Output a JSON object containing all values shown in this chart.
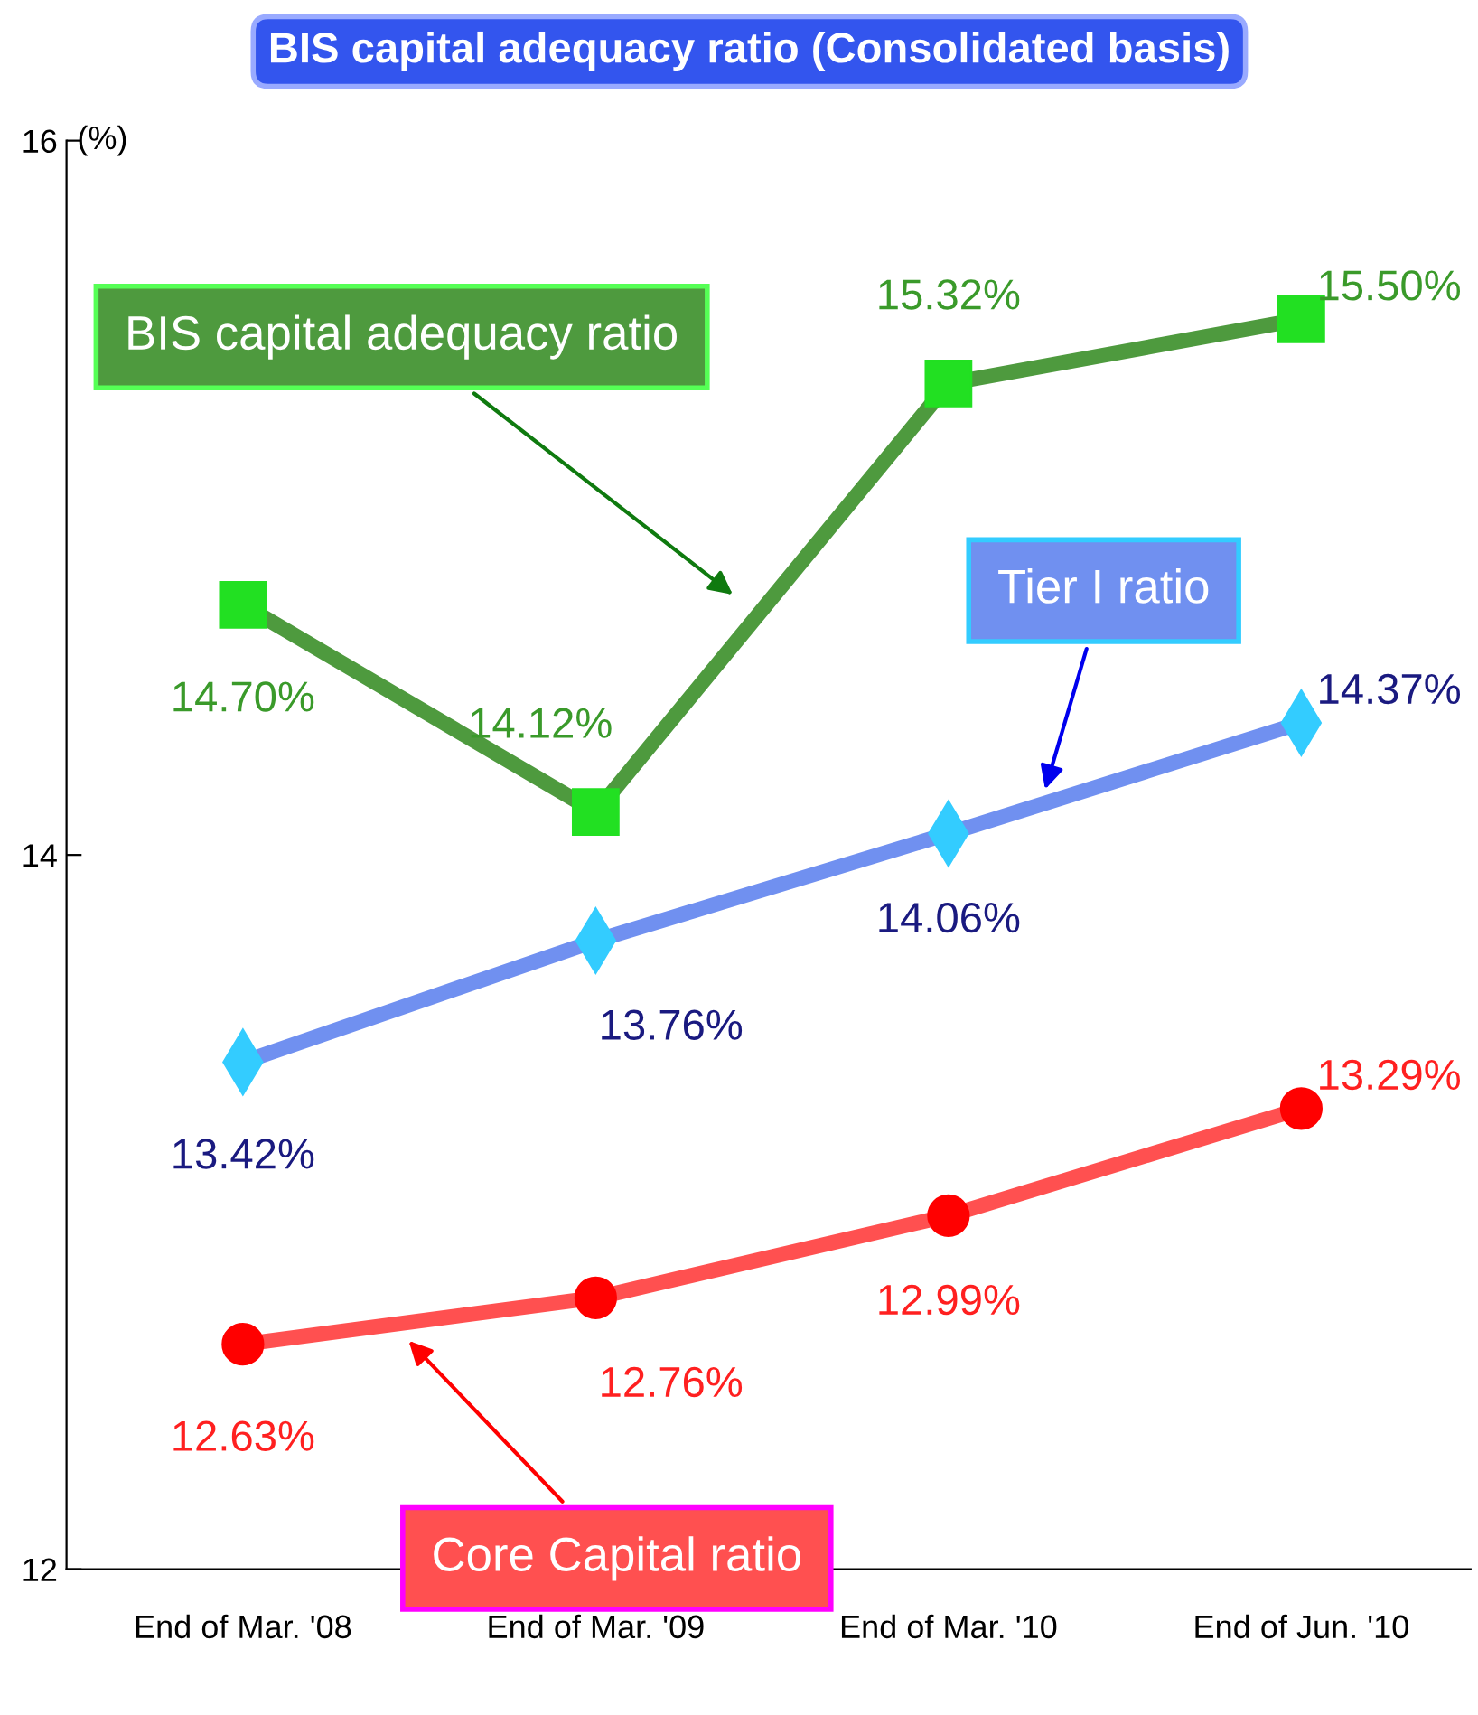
{
  "chart_data": {
    "type": "line",
    "title": "BIS capital adequacy ratio (Consolidated basis)",
    "ylabel": "(%)",
    "categories": [
      "End of Mar. '08",
      "End of Mar. '09",
      "End of Mar. '10",
      "End of Jun. '10"
    ],
    "ylim": [
      12,
      16
    ],
    "yticks": [
      12,
      14,
      16
    ],
    "grid": false,
    "legend": false,
    "series": [
      {
        "name": "BIS capital adequacy ratio",
        "color": "#4e9a3e",
        "marker": "square",
        "values": [
          14.7,
          14.12,
          15.32,
          15.5
        ],
        "value_labels": [
          "14.70%",
          "14.12%",
          "15.32%",
          "15.50%"
        ]
      },
      {
        "name": "Tier I ratio",
        "color": "#7090f0",
        "marker": "diamond",
        "values": [
          13.42,
          13.76,
          14.06,
          14.37
        ],
        "value_labels": [
          "13.42%",
          "13.76%",
          "14.06%",
          "14.37%"
        ]
      },
      {
        "name": "Core Capital ratio",
        "color": "#ff5050",
        "marker": "circle",
        "values": [
          12.63,
          12.76,
          12.99,
          13.29
        ],
        "value_labels": [
          "12.63%",
          "12.76%",
          "12.99%",
          "13.29%"
        ]
      }
    ]
  }
}
